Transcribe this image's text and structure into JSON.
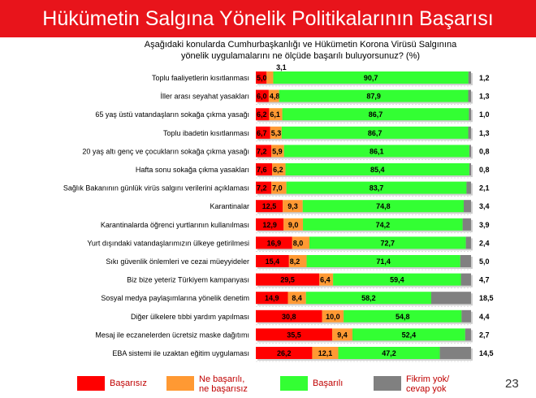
{
  "title": "Hükümetin Salgına Yönelik Politikalarının Başarısı",
  "question_line1": "Aşağıdaki konularda Cumhurbaşkanlığı ve Hükümetin Korona Virüsü Salgınına",
  "question_line2": "yönelik uygulamalarını ne ölçüde başarılı buluyorsunuz? (%)",
  "page_number": "23",
  "colors": {
    "title_bg": "#e8141b",
    "basarisiz": "#ff0000",
    "ne_ne": "#ff9933",
    "basarili": "#33ff33",
    "fikrim_yok": "#808080"
  },
  "chart_data": {
    "type": "bar",
    "orientation": "horizontal",
    "stacked": true,
    "categories": [
      "Toplu faaliyetlerin kısıtlanması",
      "İller arası seyahat yasakları",
      "65 yaş üstü vatandaşların sokağa çıkma yasağı",
      "Toplu ibadetin kısıtlanması",
      "20 yaş altı genç ve çocukların sokağa çıkma yasağı",
      "Hafta sonu sokağa çıkma yasakları",
      "Sağlık Bakanının günlük virüs salgını verilerini açıklaması",
      "Karantinalar",
      "Karantinalarda öğrenci yurtlarının kullanılması",
      "Yurt dışındaki vatandaşlarımızın ülkeye getirilmesi",
      "Sıkı güvenlik önlemleri ve cezai müeyyideler",
      "Biz bize yeteriz Türkiyem kampanyası",
      "Sosyal medya paylaşımlarına yönelik denetim",
      "Diğer ülkelere tıbbi yardım yapılması",
      "Mesaj ile eczanelerden ücretsiz maske dağıtımı",
      "EBA sistemi ile uzaktan eğitim uygulaması"
    ],
    "series": [
      {
        "name": "Başarısız",
        "values": [
          5.0,
          6.0,
          6.2,
          6.7,
          7.2,
          7.6,
          7.2,
          12.5,
          12.9,
          16.9,
          15.4,
          29.5,
          14.9,
          30.8,
          35.5,
          26.2
        ]
      },
      {
        "name": "Ne başarılı, ne başarısız",
        "values": [
          3.1,
          4.8,
          6.1,
          5.3,
          5.9,
          6.2,
          7.0,
          9.3,
          9.0,
          8.0,
          8.2,
          6.4,
          8.4,
          10.0,
          9.4,
          12.1
        ]
      },
      {
        "name": "Başarılı",
        "values": [
          90.7,
          87.9,
          86.7,
          86.7,
          86.1,
          85.4,
          83.7,
          74.8,
          74.2,
          72.7,
          71.4,
          59.4,
          58.2,
          54.8,
          52.4,
          47.2
        ]
      },
      {
        "name": "Fikrim yok/ cevap yok",
        "values": [
          1.2,
          1.3,
          1.0,
          1.3,
          0.8,
          0.8,
          2.1,
          3.4,
          3.9,
          2.4,
          5.0,
          4.7,
          18.5,
          4.4,
          2.7,
          14.5
        ]
      }
    ],
    "value_labels": [
      [
        "5,0",
        "3,1",
        "90,7",
        "1,2"
      ],
      [
        "6,0",
        "4,8",
        "87,9",
        "1,3"
      ],
      [
        "6,2",
        "6,1",
        "86,7",
        "1,0"
      ],
      [
        "6,7",
        "5,3",
        "86,7",
        "1,3"
      ],
      [
        "7,2",
        "5,9",
        "86,1",
        "0,8"
      ],
      [
        "7,6",
        "6,2",
        "85,4",
        "0,8"
      ],
      [
        "7,2",
        "7,0",
        "83,7",
        "2,1"
      ],
      [
        "12,5",
        "9,3",
        "74,8",
        "3,4"
      ],
      [
        "12,9",
        "9,0",
        "74,2",
        "3,9"
      ],
      [
        "16,9",
        "8,0",
        "72,7",
        "2,4"
      ],
      [
        "15,4",
        "8,2",
        "71,4",
        "5,0"
      ],
      [
        "29,5",
        "6,4",
        "59,4",
        "4,7"
      ],
      [
        "14,9",
        "8,4",
        "58,2",
        "18,5"
      ],
      [
        "30,8",
        "10,0",
        "54,8",
        "4,4"
      ],
      [
        "35,5",
        "9,4",
        "52,4",
        "2,7"
      ],
      [
        "26,2",
        "12,1",
        "47,2",
        "14,5"
      ]
    ],
    "xlim": [
      0,
      100
    ],
    "legend": {
      "position": "bottom",
      "labels": [
        "Başarısız",
        "Ne başarılı,\nne başarısız",
        "Başarılı",
        "Fikrim yok/\ncevap yok"
      ]
    }
  }
}
